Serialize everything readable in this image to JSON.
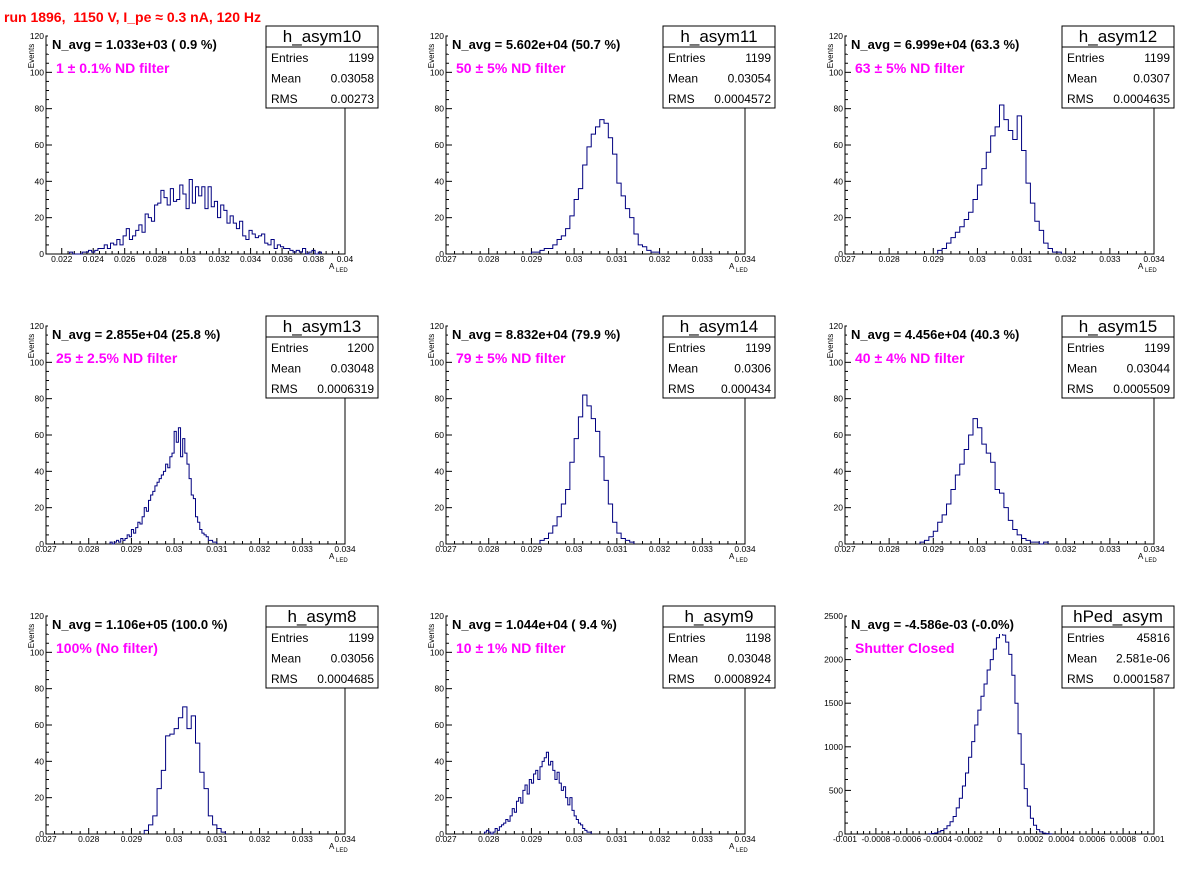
{
  "header": {
    "title": "run 1896,  1150 V, I_pe ≈ 0.3 nA, 120 Hz"
  },
  "colors": {
    "title": "#ff0000",
    "filter_text": "#ff00ff",
    "histogram_line": "#000080"
  },
  "stat_labels": {
    "entries": "Entries",
    "mean": "Mean",
    "rms": "RMS"
  },
  "chart_data": [
    {
      "type": "histogram",
      "title": "h_asym10",
      "navg": "N_avg = 1.033e+03 ( 0.9 %)",
      "filter": "1 ± 0.1% ND filter",
      "stats": {
        "entries": "1199",
        "mean": "0.03058",
        "rms": "0.00273"
      },
      "ylabel": "Events",
      "xlabel": "A",
      "xlabel_sub": "LED",
      "xlim": [
        0.021,
        0.04
      ],
      "ylim": [
        0,
        120
      ],
      "xticks": [
        0.022,
        0.024,
        0.026,
        0.028,
        0.03,
        0.032,
        0.034,
        0.036,
        0.038,
        0.04
      ],
      "xticklabels": [
        "0.022",
        "0.024",
        "0.026",
        "0.028",
        "0.03",
        "0.032",
        "0.034",
        "0.036",
        "0.038",
        "0.04"
      ],
      "yticks": [
        0,
        20,
        40,
        60,
        80,
        100,
        120
      ],
      "yticklabels": [
        "0",
        "20",
        "40",
        "60",
        "80",
        "100",
        "120"
      ],
      "bins": {
        "start": 0.0225,
        "width": 0.0002,
        "values": [
          1,
          0,
          0,
          0,
          1,
          1,
          2,
          1,
          2,
          3,
          3,
          5,
          3,
          6,
          5,
          8,
          5,
          10,
          14,
          8,
          10,
          13,
          16,
          12,
          22,
          20,
          18,
          27,
          28,
          35,
          31,
          27,
          36,
          29,
          30,
          38,
          33,
          25,
          41,
          28,
          37,
          32,
          37,
          25,
          37,
          26,
          29,
          20,
          27,
          24,
          17,
          21,
          17,
          14,
          18,
          10,
          8,
          13,
          11,
          9,
          10,
          11,
          6,
          5,
          8,
          3,
          5,
          4,
          3,
          3,
          2,
          1,
          2,
          1,
          3,
          0,
          1,
          2,
          0,
          1
        ]
      }
    },
    {
      "type": "histogram",
      "title": "h_asym11",
      "navg": "N_avg = 5.602e+04 (50.7 %)",
      "filter": "50 ± 5% ND filter",
      "stats": {
        "entries": "1199",
        "mean": "0.03054",
        "rms": "0.0004572"
      },
      "ylabel": "Events",
      "xlabel": "A",
      "xlabel_sub": "LED",
      "xlim": [
        0.027,
        0.034
      ],
      "ylim": [
        0,
        120
      ],
      "xticks": [
        0.027,
        0.028,
        0.029,
        0.03,
        0.031,
        0.032,
        0.033,
        0.034
      ],
      "xticklabels": [
        "0.027",
        "0.028",
        "0.029",
        "0.03",
        "0.031",
        "0.032",
        "0.033",
        "0.034"
      ],
      "yticks": [
        0,
        20,
        40,
        60,
        80,
        100,
        120
      ],
      "yticklabels": [
        "0",
        "20",
        "40",
        "60",
        "80",
        "100",
        "120"
      ],
      "bins": {
        "start": 0.029,
        "width": 0.0001,
        "values": [
          1,
          1,
          2,
          3,
          3,
          5,
          8,
          10,
          14,
          21,
          30,
          36,
          49,
          59,
          66,
          70,
          74,
          72,
          64,
          55,
          39,
          32,
          25,
          20,
          11,
          5,
          4,
          2,
          1,
          1
        ]
      }
    },
    {
      "type": "histogram",
      "title": "h_asym12",
      "navg": "N_avg = 6.999e+04 (63.3 %)",
      "filter": "63 ± 5% ND filter",
      "stats": {
        "entries": "1199",
        "mean": "0.0307",
        "rms": "0.0004635"
      },
      "ylabel": "Events",
      "xlabel": "A",
      "xlabel_sub": "LED",
      "xlim": [
        0.027,
        0.034
      ],
      "ylim": [
        0,
        120
      ],
      "xticks": [
        0.027,
        0.028,
        0.029,
        0.03,
        0.031,
        0.032,
        0.033,
        0.034
      ],
      "xticklabels": [
        "0.027",
        "0.028",
        "0.029",
        "0.03",
        "0.031",
        "0.032",
        "0.033",
        "0.034"
      ],
      "yticks": [
        0,
        20,
        40,
        60,
        80,
        100,
        120
      ],
      "yticklabels": [
        "0",
        "20",
        "40",
        "60",
        "80",
        "100",
        "120"
      ],
      "bins": {
        "start": 0.0291,
        "width": 0.0001,
        "values": [
          2,
          3,
          6,
          9,
          12,
          15,
          19,
          23,
          30,
          38,
          47,
          56,
          65,
          70,
          82,
          74,
          68,
          63,
          76,
          57,
          39,
          28,
          18,
          13,
          6,
          3,
          1,
          1
        ]
      }
    },
    {
      "type": "histogram",
      "title": "h_asym13",
      "navg": "N_avg = 2.855e+04 (25.8 %)",
      "filter": "25 ± 2.5% ND filter",
      "stats": {
        "entries": "1200",
        "mean": "0.03048",
        "rms": "0.0006319"
      },
      "ylabel": "Events",
      "xlabel": "A",
      "xlabel_sub": "LED",
      "xlim": [
        0.027,
        0.034
      ],
      "ylim": [
        0,
        120
      ],
      "xticks": [
        0.027,
        0.028,
        0.029,
        0.03,
        0.031,
        0.032,
        0.033,
        0.034
      ],
      "xticklabels": [
        "0.027",
        "0.028",
        "0.029",
        "0.03",
        "0.031",
        "0.032",
        "0.033",
        "0.034"
      ],
      "yticks": [
        0,
        20,
        40,
        60,
        80,
        100,
        120
      ],
      "yticklabels": [
        "0",
        "20",
        "40",
        "60",
        "80",
        "100",
        "120"
      ],
      "bins": {
        "start": 0.0285,
        "width": 5e-05,
        "values": [
          1,
          0,
          1,
          2,
          1,
          3,
          2,
          3,
          5,
          4,
          8,
          6,
          9,
          12,
          11,
          15,
          20,
          18,
          24,
          27,
          29,
          32,
          34,
          36,
          38,
          40,
          44,
          42,
          48,
          50,
          62,
          56,
          64,
          48,
          58,
          50,
          44,
          36,
          27,
          25,
          15,
          12,
          8,
          6,
          5,
          4,
          2,
          2,
          1,
          1
        ]
      }
    },
    {
      "type": "histogram",
      "title": "h_asym14",
      "navg": "N_avg = 8.832e+04 (79.9 %)",
      "filter": "79 ± 5% ND filter",
      "stats": {
        "entries": "1199",
        "mean": "0.0306",
        "rms": "0.000434"
      },
      "ylabel": "Events",
      "xlabel": "A",
      "xlabel_sub": "LED",
      "xlim": [
        0.027,
        0.034
      ],
      "ylim": [
        0,
        120
      ],
      "xticks": [
        0.027,
        0.028,
        0.029,
        0.03,
        0.031,
        0.032,
        0.033,
        0.034
      ],
      "xticklabels": [
        "0.027",
        "0.028",
        "0.029",
        "0.03",
        "0.031",
        "0.032",
        "0.033",
        "0.034"
      ],
      "yticks": [
        0,
        20,
        40,
        60,
        80,
        100,
        120
      ],
      "yticklabels": [
        "0",
        "20",
        "40",
        "60",
        "80",
        "100",
        "120"
      ],
      "bins": {
        "start": 0.0292,
        "width": 0.0001,
        "values": [
          2,
          3,
          6,
          10,
          15,
          22,
          30,
          45,
          58,
          70,
          82,
          76,
          69,
          62,
          48,
          35,
          22,
          12,
          6,
          3,
          2,
          1
        ]
      }
    },
    {
      "type": "histogram",
      "title": "h_asym15",
      "navg": "N_avg = 4.456e+04 (40.3 %)",
      "filter": "40 ± 4% ND filter",
      "stats": {
        "entries": "1199",
        "mean": "0.03044",
        "rms": "0.0005509"
      },
      "ylabel": "Events",
      "xlabel": "A",
      "xlabel_sub": "LED",
      "xlim": [
        0.027,
        0.034
      ],
      "ylim": [
        0,
        120
      ],
      "xticks": [
        0.027,
        0.028,
        0.029,
        0.03,
        0.031,
        0.032,
        0.033,
        0.034
      ],
      "xticklabels": [
        "0.027",
        "0.028",
        "0.029",
        "0.03",
        "0.031",
        "0.032",
        "0.033",
        "0.034"
      ],
      "yticks": [
        0,
        20,
        40,
        60,
        80,
        100,
        120
      ],
      "yticklabels": [
        "0",
        "20",
        "40",
        "60",
        "80",
        "100",
        "120"
      ],
      "bins": {
        "start": 0.0287,
        "width": 0.0001,
        "values": [
          1,
          2,
          4,
          7,
          12,
          16,
          22,
          30,
          38,
          44,
          52,
          60,
          69,
          64,
          55,
          50,
          45,
          30,
          28,
          20,
          13,
          8,
          5,
          3,
          2,
          1,
          1,
          0,
          1
        ]
      }
    },
    {
      "type": "histogram",
      "title": "h_asym8",
      "navg": "N_avg = 1.106e+05 (100.0 %)",
      "filter": "100% (No filter)",
      "stats": {
        "entries": "1199",
        "mean": "0.03056",
        "rms": "0.0004685"
      },
      "ylabel": "Events",
      "xlabel": "A",
      "xlabel_sub": "LED",
      "xlim": [
        0.027,
        0.034
      ],
      "ylim": [
        0,
        120
      ],
      "xticks": [
        0.027,
        0.028,
        0.029,
        0.03,
        0.031,
        0.032,
        0.033,
        0.034
      ],
      "xticklabels": [
        "0.027",
        "0.028",
        "0.029",
        "0.03",
        "0.031",
        "0.032",
        "0.033",
        "0.034"
      ],
      "yticks": [
        0,
        20,
        40,
        60,
        80,
        100,
        120
      ],
      "yticklabels": [
        "0",
        "20",
        "40",
        "60",
        "80",
        "100",
        "120"
      ],
      "bins": {
        "start": 0.0293,
        "width": 0.0001,
        "values": [
          2,
          5,
          10,
          25,
          35,
          54,
          55,
          58,
          64,
          70,
          58,
          65,
          50,
          34,
          25,
          10,
          5,
          3,
          1
        ]
      }
    },
    {
      "type": "histogram",
      "title": "h_asym9",
      "navg": "N_avg = 1.044e+04 ( 9.4 %)",
      "filter": "10 ± 1% ND filter",
      "stats": {
        "entries": "1198",
        "mean": "0.03048",
        "rms": "0.0008924"
      },
      "ylabel": "Events",
      "xlabel": "A",
      "xlabel_sub": "LED",
      "xlim": [
        0.027,
        0.034
      ],
      "ylim": [
        0,
        120
      ],
      "xticks": [
        0.027,
        0.028,
        0.029,
        0.03,
        0.031,
        0.032,
        0.033,
        0.034
      ],
      "xticklabels": [
        "0.027",
        "0.028",
        "0.029",
        "0.03",
        "0.031",
        "0.032",
        "0.033",
        "0.034"
      ],
      "yticks": [
        0,
        20,
        40,
        60,
        80,
        100,
        120
      ],
      "yticklabels": [
        "0",
        "20",
        "40",
        "60",
        "80",
        "100",
        "120"
      ],
      "bins": {
        "start": 0.0279,
        "width": 5e-05,
        "values": [
          1,
          2,
          1,
          0,
          1,
          3,
          2,
          4,
          5,
          6,
          8,
          7,
          10,
          14,
          12,
          18,
          20,
          17,
          24,
          27,
          22,
          30,
          28,
          33,
          35,
          30,
          37,
          40,
          42,
          45,
          38,
          40,
          35,
          30,
          34,
          28,
          24,
          26,
          20,
          16,
          20,
          13,
          10,
          8,
          6,
          5,
          3,
          2,
          1,
          1
        ]
      }
    },
    {
      "type": "histogram",
      "title": "hPed_asym",
      "navg": "N_avg = -4.586e-03 (-0.0%)",
      "filter": "Shutter Closed",
      "stats": {
        "entries": "45816",
        "mean": "2.581e-06",
        "rms": "0.0001587"
      },
      "ylabel": "",
      "xlabel": "",
      "xlabel_sub": "",
      "xlim": [
        -0.001,
        0.001
      ],
      "ylim": [
        0,
        2500
      ],
      "xticks": [
        -0.001,
        -0.0008,
        -0.0006,
        -0.0004,
        -0.0002,
        0,
        0.0002,
        0.0004,
        0.0006,
        0.0008,
        0.001
      ],
      "xticklabels": [
        "-0.001",
        "-0.0008",
        "-0.0006",
        "-0.0004",
        "-0.0002",
        "0",
        "0.0002",
        "0.0004",
        "0.0006",
        "0.0008",
        "0.001"
      ],
      "yticks": [
        0,
        500,
        1000,
        1500,
        2000,
        2500
      ],
      "yticklabels": [
        "0",
        "500",
        "1000",
        "1500",
        "2000",
        "2500"
      ],
      "bins": {
        "start": -0.00046,
        "width": 2e-05,
        "values": [
          2,
          5,
          12,
          25,
          40,
          60,
          95,
          140,
          200,
          300,
          410,
          550,
          700,
          880,
          1060,
          1250,
          1420,
          1580,
          1720,
          1880,
          2000,
          2120,
          2250,
          2300,
          2280,
          2200,
          2060,
          1820,
          1500,
          1150,
          800,
          520,
          320,
          180,
          100,
          50,
          25,
          10,
          4,
          2
        ]
      }
    }
  ]
}
